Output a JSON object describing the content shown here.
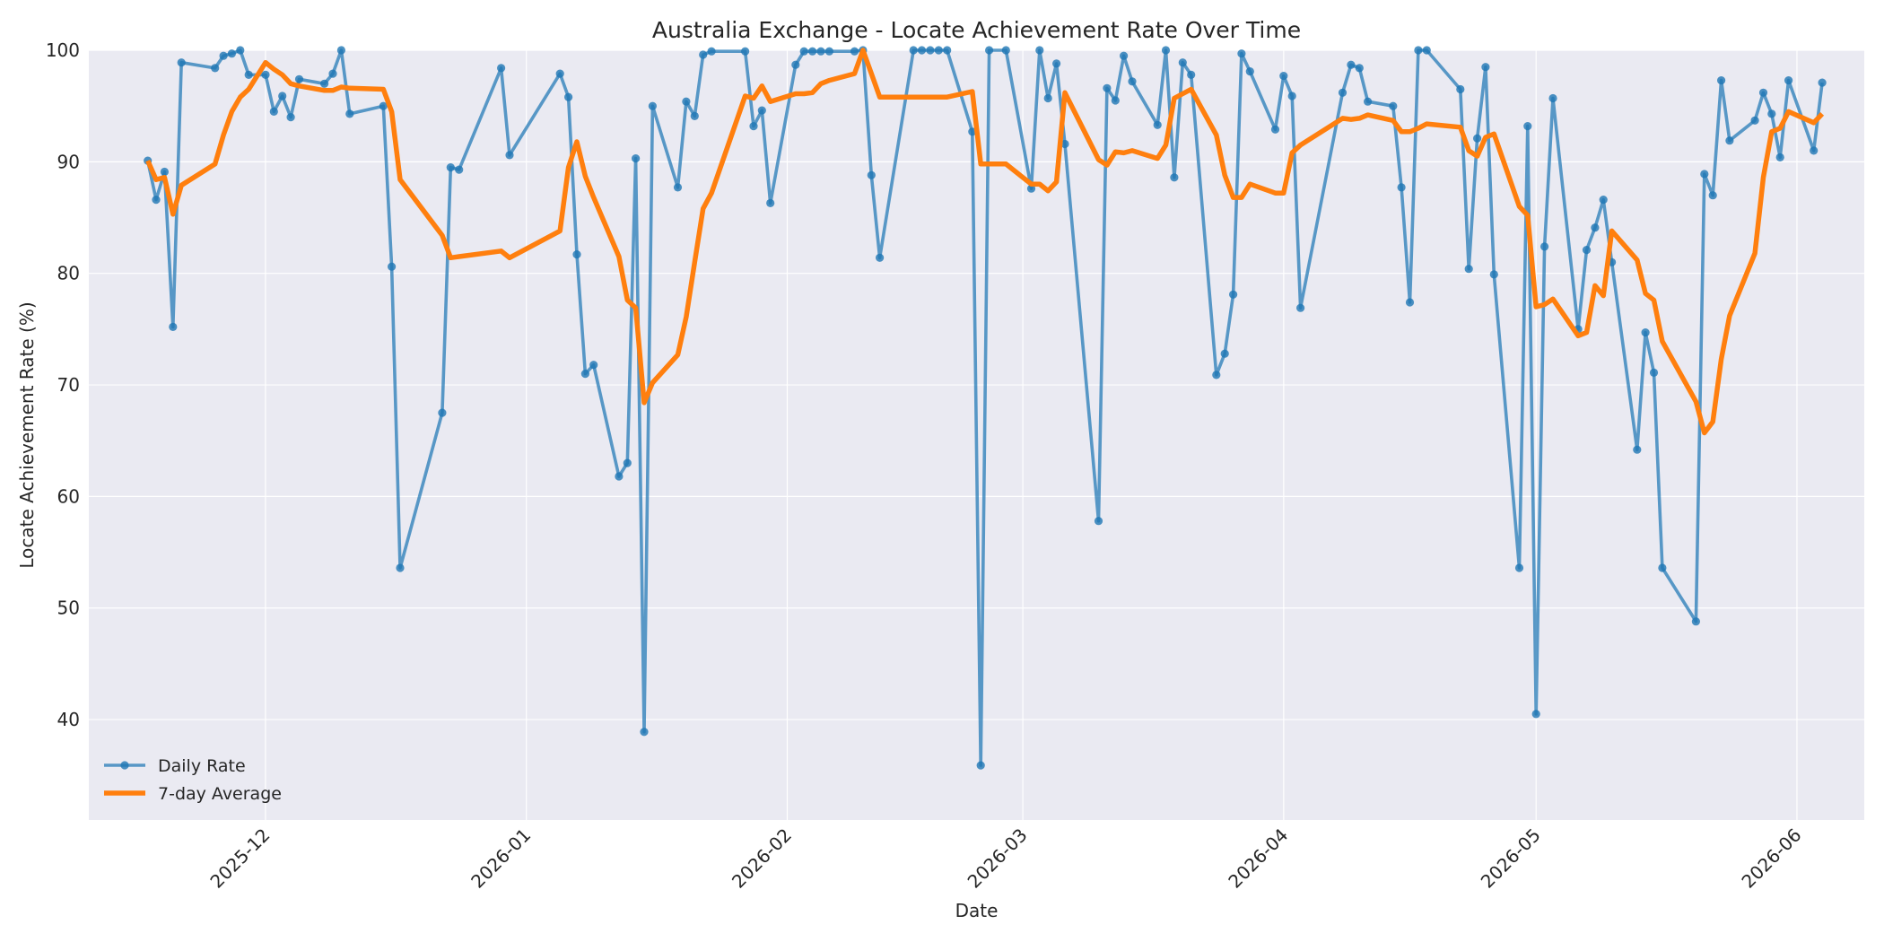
{
  "chart_data": {
    "type": "line",
    "title": "Australia Exchange - Locate Achievement Rate Over Time",
    "xlabel": "Date",
    "ylabel": "Locate Achievement Rate (%)",
    "xlim": [
      "2025-11-10",
      "2026-06-09"
    ],
    "ylim": [
      31,
      100
    ],
    "x_ticks": [
      "2025-12",
      "2026-01",
      "2026-02",
      "2026-03",
      "2026-04",
      "2026-05",
      "2026-06"
    ],
    "y_ticks": [
      40,
      50,
      60,
      70,
      80,
      90,
      100
    ],
    "grid": true,
    "legend_position": "bottom-left",
    "series": [
      {
        "name": "Daily Rate",
        "color": "#1f77b4",
        "x": [
          "2025-11-17",
          "2025-11-18",
          "2025-11-19",
          "2025-11-20",
          "2025-11-21",
          "2025-11-25",
          "2025-11-26",
          "2025-11-27",
          "2025-11-28",
          "2025-11-29",
          "2025-12-01",
          "2025-12-02",
          "2025-12-03",
          "2025-12-04",
          "2025-12-05",
          "2025-12-08",
          "2025-12-09",
          "2025-12-10",
          "2025-12-11",
          "2025-12-15",
          "2025-12-16",
          "2025-12-17",
          "2025-12-22",
          "2025-12-23",
          "2025-12-24",
          "2025-12-29",
          "2025-12-30",
          "2026-01-05",
          "2026-01-06",
          "2026-01-07",
          "2026-01-08",
          "2026-01-09",
          "2026-01-12",
          "2026-01-13",
          "2026-01-14",
          "2026-01-15",
          "2026-01-16",
          "2026-01-19",
          "2026-01-20",
          "2026-01-21",
          "2026-01-22",
          "2026-01-23",
          "2026-01-27",
          "2026-01-28",
          "2026-01-29",
          "2026-01-30",
          "2026-02-02",
          "2026-02-03",
          "2026-02-04",
          "2026-02-05",
          "2026-02-06",
          "2026-02-09",
          "2026-02-10",
          "2026-02-11",
          "2026-02-12",
          "2026-02-16",
          "2026-02-17",
          "2026-02-18",
          "2026-02-19",
          "2026-02-20",
          "2026-02-23",
          "2026-02-24",
          "2026-02-25",
          "2026-02-27",
          "2026-03-02",
          "2026-03-03",
          "2026-03-04",
          "2026-03-05",
          "2026-03-06",
          "2026-03-10",
          "2026-03-11",
          "2026-03-12",
          "2026-03-13",
          "2026-03-14",
          "2026-03-17",
          "2026-03-18",
          "2026-03-19",
          "2026-03-20",
          "2026-03-21",
          "2026-03-24",
          "2026-03-25",
          "2026-03-26",
          "2026-03-27",
          "2026-03-28",
          "2026-03-31",
          "2026-04-01",
          "2026-04-02",
          "2026-04-03",
          "2026-04-08",
          "2026-04-09",
          "2026-04-10",
          "2026-04-11",
          "2026-04-14",
          "2026-04-15",
          "2026-04-16",
          "2026-04-17",
          "2026-04-18",
          "2026-04-22",
          "2026-04-23",
          "2026-04-24",
          "2026-04-25",
          "2026-04-26",
          "2026-04-29",
          "2026-04-30",
          "2026-05-01",
          "2026-05-02",
          "2026-05-03",
          "2026-05-06",
          "2026-05-07",
          "2026-05-08",
          "2026-05-09",
          "2026-05-10",
          "2026-05-13",
          "2026-05-14",
          "2026-05-15",
          "2026-05-16",
          "2026-05-20",
          "2026-05-21",
          "2026-05-22",
          "2026-05-23",
          "2026-05-24",
          "2026-05-27",
          "2026-05-28",
          "2026-05-29",
          "2026-05-30",
          "2026-05-31",
          "2026-06-03",
          "2026-06-04"
        ],
        "values": [
          90.1,
          86.6,
          89.1,
          75.2,
          98.9,
          98.4,
          99.5,
          99.7,
          100,
          97.8,
          97.8,
          94.5,
          95.9,
          94.0,
          97.4,
          97.0,
          97.9,
          100,
          94.3,
          95.0,
          80.6,
          53.6,
          67.5,
          89.5,
          89.3,
          98.4,
          90.6,
          97.9,
          95.8,
          81.7,
          71.0,
          71.8,
          61.8,
          63.0,
          90.3,
          38.9,
          95.0,
          87.7,
          95.4,
          94.1,
          99.6,
          99.9,
          99.9,
          93.2,
          94.6,
          86.3,
          98.7,
          99.9,
          99.9,
          99.9,
          99.9,
          99.9,
          100,
          88.8,
          81.4,
          100,
          100,
          100,
          100,
          100,
          92.7,
          35.9,
          100,
          100,
          87.6,
          100,
          95.7,
          98.8,
          91.6,
          57.8,
          96.6,
          95.5,
          99.5,
          97.2,
          93.3,
          100,
          88.6,
          98.9,
          97.8,
          70.9,
          72.8,
          78.1,
          99.7,
          98.1,
          92.9,
          97.7,
          95.9,
          76.9,
          96.2,
          98.7,
          98.4,
          95.4,
          95.0,
          87.7,
          77.4,
          100,
          100,
          96.5,
          80.4,
          92.1,
          98.5,
          79.9,
          53.6,
          93.2,
          40.5,
          82.4,
          95.7,
          75.0,
          82.1,
          84.1,
          86.6,
          81.0,
          64.2,
          74.7,
          71.1,
          53.6,
          48.8,
          88.9,
          87.0,
          97.3,
          91.9,
          93.7,
          96.2,
          94.3,
          90.4,
          97.3,
          91.0,
          97.1
        ]
      },
      {
        "name": "7-day Average",
        "color": "#ff7f0e",
        "x": [
          "2025-11-17",
          "2025-11-18",
          "2025-11-19",
          "2025-11-20",
          "2025-11-21",
          "2025-11-25",
          "2025-11-26",
          "2025-11-27",
          "2025-11-28",
          "2025-11-29",
          "2025-12-01",
          "2025-12-02",
          "2025-12-03",
          "2025-12-04",
          "2025-12-05",
          "2025-12-08",
          "2025-12-09",
          "2025-12-10",
          "2025-12-11",
          "2025-12-15",
          "2025-12-16",
          "2025-12-17",
          "2025-12-22",
          "2025-12-23",
          "2025-12-24",
          "2025-12-29",
          "2025-12-30",
          "2026-01-05",
          "2026-01-06",
          "2026-01-07",
          "2026-01-08",
          "2026-01-09",
          "2026-01-12",
          "2026-01-13",
          "2026-01-14",
          "2026-01-15",
          "2026-01-16",
          "2026-01-19",
          "2026-01-20",
          "2026-01-21",
          "2026-01-22",
          "2026-01-23",
          "2026-01-27",
          "2026-01-28",
          "2026-01-29",
          "2026-01-30",
          "2026-02-02",
          "2026-02-03",
          "2026-02-04",
          "2026-02-05",
          "2026-02-06",
          "2026-02-09",
          "2026-02-10",
          "2026-02-11",
          "2026-02-12",
          "2026-02-16",
          "2026-02-17",
          "2026-02-18",
          "2026-02-19",
          "2026-02-20",
          "2026-02-23",
          "2026-02-24",
          "2026-02-25",
          "2026-02-27",
          "2026-03-02",
          "2026-03-03",
          "2026-03-04",
          "2026-03-05",
          "2026-03-06",
          "2026-03-10",
          "2026-03-11",
          "2026-03-12",
          "2026-03-13",
          "2026-03-14",
          "2026-03-17",
          "2026-03-18",
          "2026-03-19",
          "2026-03-20",
          "2026-03-21",
          "2026-03-24",
          "2026-03-25",
          "2026-03-26",
          "2026-03-27",
          "2026-03-28",
          "2026-03-31",
          "2026-04-01",
          "2026-04-02",
          "2026-04-03",
          "2026-04-08",
          "2026-04-09",
          "2026-04-10",
          "2026-04-11",
          "2026-04-14",
          "2026-04-15",
          "2026-04-16",
          "2026-04-17",
          "2026-04-18",
          "2026-04-22",
          "2026-04-23",
          "2026-04-24",
          "2026-04-25",
          "2026-04-26",
          "2026-04-29",
          "2026-04-30",
          "2026-05-01",
          "2026-05-02",
          "2026-05-03",
          "2026-05-06",
          "2026-05-07",
          "2026-05-08",
          "2026-05-09",
          "2026-05-10",
          "2026-05-13",
          "2026-05-14",
          "2026-05-15",
          "2026-05-16",
          "2026-05-20",
          "2026-05-21",
          "2026-05-22",
          "2026-05-23",
          "2026-05-24",
          "2026-05-27",
          "2026-05-28",
          "2026-05-29",
          "2026-05-30",
          "2026-05-31",
          "2026-06-03",
          "2026-06-04"
        ],
        "values": [
          90.1,
          88.4,
          88.6,
          85.3,
          87.9,
          89.8,
          92.4,
          94.5,
          95.8,
          96.5,
          98.9,
          98.3,
          97.8,
          97.0,
          96.8,
          96.4,
          96.4,
          96.7,
          96.6,
          96.5,
          94.5,
          88.4,
          83.4,
          81.4,
          81.5,
          82.0,
          81.4,
          83.8,
          89.5,
          91.8,
          88.7,
          86.8,
          81.5,
          77.6,
          76.9,
          68.4,
          70.2,
          72.7,
          76.1,
          81.0,
          85.8,
          87.2,
          95.9,
          95.7,
          96.8,
          95.4,
          96.1,
          96.1,
          96.2,
          97.0,
          97.3,
          97.9,
          100,
          97.9,
          95.8,
          95.8,
          95.8,
          95.8,
          95.8,
          95.8,
          96.3,
          89.8,
          89.8,
          89.8,
          88.0,
          88.0,
          87.4,
          88.2,
          96.2,
          90.2,
          89.7,
          90.9,
          90.8,
          91.0,
          90.3,
          91.5,
          95.7,
          96.1,
          96.5,
          92.4,
          88.8,
          86.8,
          86.8,
          88.0,
          87.2,
          87.2,
          90.8,
          91.5,
          93.9,
          93.8,
          93.9,
          94.2,
          93.7,
          92.7,
          92.7,
          93.0,
          93.4,
          93.1,
          91.0,
          90.5,
          92.2,
          92.5,
          86.0,
          85.2,
          77.0,
          77.2,
          77.7,
          74.4,
          74.7,
          78.9,
          78.0,
          83.8,
          81.2,
          78.2,
          77.6,
          73.9,
          68.5,
          65.7,
          66.7,
          72.3,
          76.2,
          81.8,
          88.6,
          92.7,
          93.0,
          94.5,
          93.5,
          94.3
        ]
      }
    ]
  }
}
